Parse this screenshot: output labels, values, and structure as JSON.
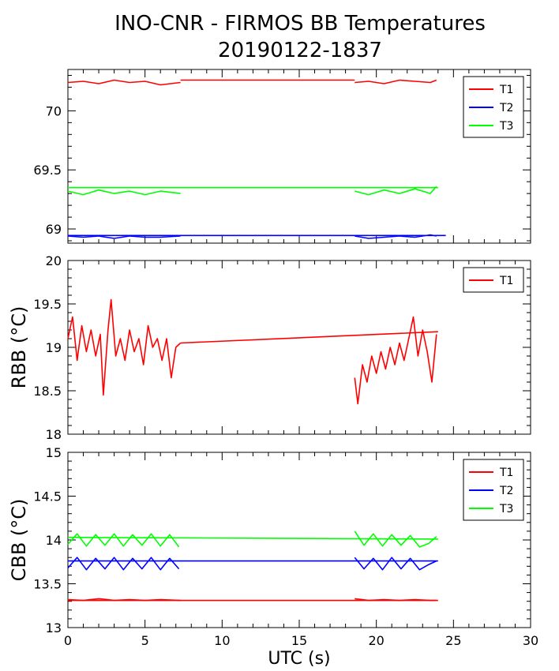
{
  "figure": {
    "title": "INO-CNR - FIRMOS BB Temperatures",
    "subtitle": "20190122-1837"
  },
  "colors": {
    "T1": "#ff0000",
    "T2": "#0000ff",
    "T3": "#00ff00"
  },
  "chart_data": [
    {
      "type": "line",
      "name": "panel-top",
      "ylabel": "",
      "xlim": [
        0,
        30
      ],
      "ylim": [
        68.88,
        70.35
      ],
      "y_ticks": [
        69,
        69.5,
        70
      ],
      "y_tick_labels": [
        "69",
        "69.5",
        "70"
      ],
      "legend_position": "top-right",
      "series": [
        {
          "name": "T1",
          "color": "#ff0000",
          "segments": [
            {
              "x": [
                0,
                1,
                2,
                3,
                4,
                5,
                6,
                7.3
              ],
              "y": [
                70.24,
                70.25,
                70.23,
                70.26,
                70.24,
                70.25,
                70.22,
                70.24
              ]
            },
            {
              "x": [
                7.3,
                18.6
              ],
              "y": [
                70.26,
                70.26
              ]
            },
            {
              "x": [
                18.6,
                19.5,
                20.5,
                21.5,
                22.5,
                23.5,
                23.9
              ],
              "y": [
                70.24,
                70.25,
                70.23,
                70.26,
                70.25,
                70.24,
                70.26
              ]
            }
          ]
        },
        {
          "name": "T2",
          "color": "#0000ff",
          "segments": [
            {
              "x": [
                0,
                1,
                2,
                3,
                4,
                5,
                6,
                7.3
              ],
              "y": [
                68.94,
                68.93,
                68.94,
                68.92,
                68.94,
                68.93,
                68.93,
                68.94
              ]
            },
            {
              "x": [
                0,
                24.5
              ],
              "y": [
                68.945,
                68.945
              ]
            },
            {
              "x": [
                18.6,
                19.5,
                20.5,
                21.5,
                22.5,
                23.5,
                23.9
              ],
              "y": [
                68.94,
                68.92,
                68.93,
                68.94,
                68.93,
                68.95,
                68.94
              ]
            }
          ]
        },
        {
          "name": "T3",
          "color": "#00ff00",
          "segments": [
            {
              "x": [
                0,
                1,
                2,
                3,
                4,
                5,
                6,
                7.3
              ],
              "y": [
                69.32,
                69.29,
                69.33,
                69.3,
                69.32,
                69.29,
                69.32,
                69.3
              ]
            },
            {
              "x": [
                0,
                24
              ],
              "y": [
                69.35,
                69.35
              ]
            },
            {
              "x": [
                18.6,
                19.5,
                20.5,
                21.5,
                22.5,
                23.5,
                23.9
              ],
              "y": [
                69.32,
                69.29,
                69.33,
                69.3,
                69.34,
                69.3,
                69.36
              ]
            }
          ]
        }
      ]
    },
    {
      "type": "line",
      "name": "panel-middle",
      "ylabel": "RBB (°C)",
      "xlim": [
        0,
        30
      ],
      "ylim": [
        18,
        20
      ],
      "y_ticks": [
        18,
        18.5,
        19,
        19.5,
        20
      ],
      "y_tick_labels": [
        "18",
        "18.5",
        "19",
        "19.5",
        "20"
      ],
      "legend_position": "top-right",
      "series": [
        {
          "name": "T1",
          "color": "#ff0000",
          "segments": [
            {
              "x": [
                0,
                0.3,
                0.6,
                0.9,
                1.2,
                1.5,
                1.8,
                2.1,
                2.3,
                2.6,
                2.8,
                3.1,
                3.4,
                3.7,
                4.0,
                4.3,
                4.6,
                4.9,
                5.2,
                5.5,
                5.8,
                6.1,
                6.4,
                6.7,
                7.0,
                7.3
              ],
              "y": [
                19.1,
                19.35,
                18.85,
                19.25,
                18.95,
                19.2,
                18.9,
                19.15,
                18.45,
                19.2,
                19.55,
                18.9,
                19.1,
                18.85,
                19.2,
                18.95,
                19.1,
                18.8,
                19.25,
                19.0,
                19.1,
                18.85,
                19.1,
                18.65,
                19.0,
                19.05
              ]
            },
            {
              "x": [
                7.3,
                24
              ],
              "y": [
                19.05,
                19.18
              ]
            },
            {
              "x": [
                18.6,
                18.8,
                19.1,
                19.4,
                19.7,
                20.0,
                20.3,
                20.6,
                20.9,
                21.2,
                21.5,
                21.8,
                22.1,
                22.4,
                22.7,
                23.0,
                23.3,
                23.6,
                23.9
              ],
              "y": [
                18.65,
                18.35,
                18.8,
                18.6,
                18.9,
                18.7,
                18.95,
                18.75,
                19.0,
                18.8,
                19.05,
                18.85,
                19.1,
                19.35,
                18.9,
                19.2,
                18.95,
                18.6,
                19.15
              ]
            }
          ]
        }
      ]
    },
    {
      "type": "line",
      "name": "panel-bottom",
      "ylabel": "CBB (°C)",
      "xlabel": "UTC (s)",
      "xlim": [
        0,
        30
      ],
      "ylim": [
        13,
        15
      ],
      "x_ticks": [
        0,
        5,
        10,
        15,
        20,
        25,
        30
      ],
      "x_tick_labels": [
        "0",
        "5",
        "10",
        "15",
        "20",
        "25",
        "30"
      ],
      "y_ticks": [
        13,
        13.5,
        14,
        14.5,
        15
      ],
      "y_tick_labels": [
        "13",
        "13.5",
        "14",
        "14.5",
        "15"
      ],
      "legend_position": "top-right",
      "series": [
        {
          "name": "T1",
          "color": "#ff0000",
          "segments": [
            {
              "x": [
                0,
                1,
                2,
                3,
                4,
                5,
                6,
                7.3
              ],
              "y": [
                13.32,
                13.31,
                13.33,
                13.31,
                13.32,
                13.31,
                13.32,
                13.31
              ]
            },
            {
              "x": [
                0,
                24
              ],
              "y": [
                13.31,
                13.31
              ]
            },
            {
              "x": [
                18.6,
                19.5,
                20.5,
                21.5,
                22.5,
                23.5,
                23.9
              ],
              "y": [
                13.33,
                13.31,
                13.32,
                13.31,
                13.32,
                13.31,
                13.31
              ]
            }
          ]
        },
        {
          "name": "T2",
          "color": "#0000ff",
          "segments": [
            {
              "x": [
                0,
                0.6,
                1.2,
                1.8,
                2.4,
                3.0,
                3.6,
                4.2,
                4.8,
                5.4,
                6.0,
                6.6,
                7.2
              ],
              "y": [
                13.68,
                13.8,
                13.66,
                13.79,
                13.67,
                13.8,
                13.66,
                13.79,
                13.67,
                13.8,
                13.66,
                13.79,
                13.67
              ]
            },
            {
              "x": [
                0,
                24
              ],
              "y": [
                13.76,
                13.76
              ]
            },
            {
              "x": [
                18.6,
                19.2,
                19.8,
                20.4,
                21.0,
                21.6,
                22.2,
                22.8,
                23.4,
                23.9
              ],
              "y": [
                13.8,
                13.67,
                13.79,
                13.66,
                13.8,
                13.67,
                13.79,
                13.66,
                13.72,
                13.76
              ]
            }
          ]
        },
        {
          "name": "T3",
          "color": "#00ff00",
          "segments": [
            {
              "x": [
                0,
                0.6,
                1.2,
                1.8,
                2.4,
                3.0,
                3.6,
                4.2,
                4.8,
                5.4,
                6.0,
                6.6,
                7.2
              ],
              "y": [
                13.95,
                14.07,
                13.93,
                14.06,
                13.94,
                14.07,
                13.93,
                14.06,
                13.94,
                14.07,
                13.93,
                14.06,
                13.92
              ]
            },
            {
              "x": [
                0,
                24
              ],
              "y": [
                14.03,
                14.01
              ]
            },
            {
              "x": [
                18.6,
                19.2,
                19.8,
                20.4,
                21.0,
                21.6,
                22.2,
                22.8,
                23.4,
                23.9
              ],
              "y": [
                14.1,
                13.94,
                14.07,
                13.93,
                14.06,
                13.94,
                14.05,
                13.92,
                13.96,
                14.04
              ]
            }
          ]
        }
      ]
    }
  ]
}
